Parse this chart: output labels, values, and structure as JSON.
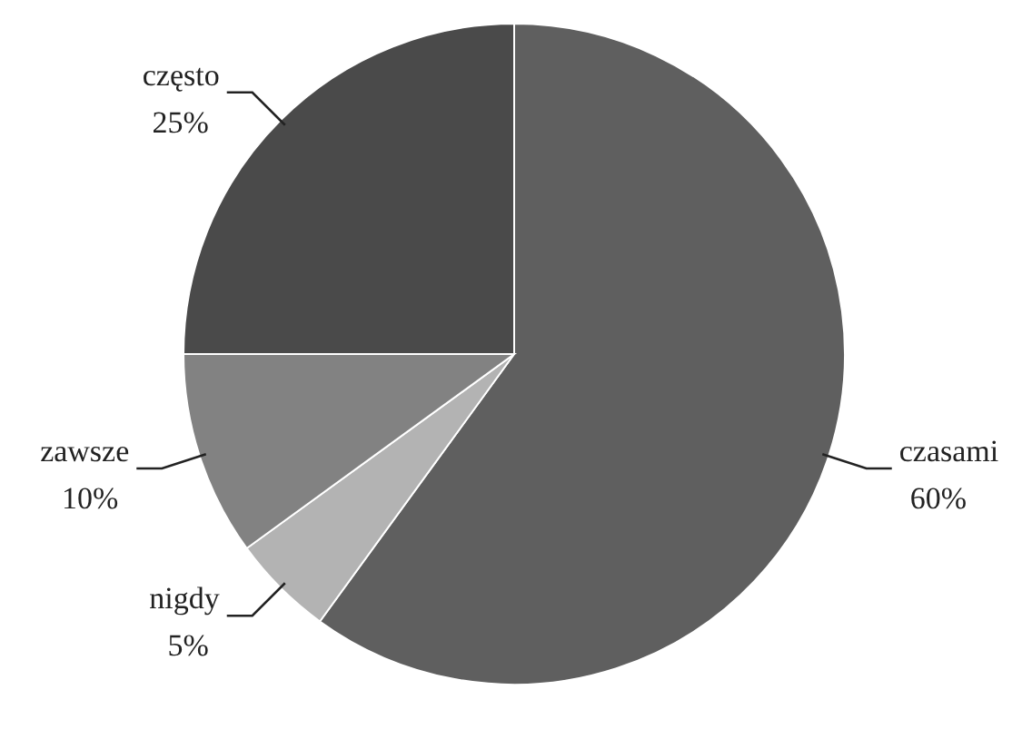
{
  "chart_data": {
    "type": "pie",
    "categories": [
      "czasami",
      "nigdy",
      "zawsze",
      "często"
    ],
    "values": [
      60,
      5,
      10,
      25
    ],
    "value_labels": [
      "60%",
      "5%",
      "10%",
      "25%"
    ],
    "colors": [
      "#5f5f5f",
      "#b3b3b3",
      "#828282",
      "#4a4a4a"
    ],
    "legend": false
  }
}
